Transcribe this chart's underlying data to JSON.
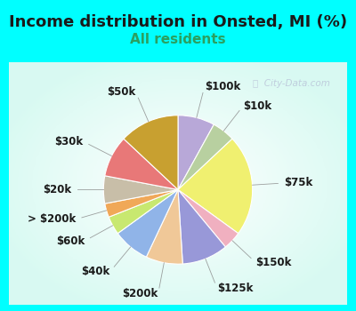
{
  "title": "Income distribution in Onsted, MI (%)",
  "subtitle": "All residents",
  "outer_bg_color": "#00ffff",
  "inner_bg_color": "#e8f8f0",
  "labels": [
    "$100k",
    "$10k",
    "$75k",
    "$150k",
    "$125k",
    "$200k",
    "$40k",
    "$60k",
    "> $200k",
    "$20k",
    "$30k",
    "$50k"
  ],
  "values": [
    8,
    5,
    22,
    4,
    10,
    8,
    8,
    4,
    3,
    6,
    9,
    13
  ],
  "colors": [
    "#b8a8d8",
    "#b8d0a0",
    "#f0f070",
    "#f0b0c0",
    "#9898d8",
    "#f0c898",
    "#90b4e8",
    "#c8e870",
    "#f0a858",
    "#c8bea8",
    "#e87878",
    "#c8a030"
  ],
  "watermark": "City-Data.com",
  "title_fontsize": 13,
  "subtitle_fontsize": 11,
  "label_fontsize": 8.5
}
